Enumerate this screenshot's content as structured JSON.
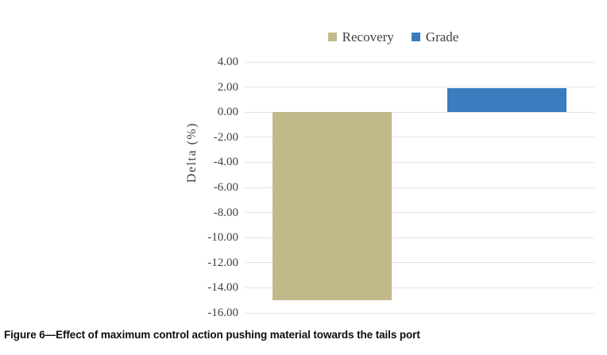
{
  "chart_data": {
    "type": "bar",
    "title": "",
    "xlabel": "",
    "ylabel": "Delta (%)",
    "ylim": [
      -16,
      4
    ],
    "ytick_step": 2,
    "ytick_labels": [
      "4.00",
      "2.00",
      "0.00",
      "-2.00",
      "-4.00",
      "-6.00",
      "-8.00",
      "-10.00",
      "-12.00",
      "-14.00",
      "-16.00"
    ],
    "ytick_values": [
      4,
      2,
      0,
      -2,
      -4,
      -6,
      -8,
      -10,
      -12,
      -14,
      -16
    ],
    "grid": true,
    "legend_position": "top-center",
    "series": [
      {
        "name": "Recovery",
        "value": -15.0,
        "color": "#C1B98A"
      },
      {
        "name": "Grade",
        "value": 1.9,
        "color": "#3B7CBF"
      }
    ]
  },
  "caption": "Figure 6—Effect of maximum control action pushing material towards the tails port",
  "colors": {
    "recovery_bar": "#C1B98A",
    "grade_bar": "#3B7CBF",
    "gridline": "#E4E4E4",
    "axis_text": "#404040",
    "caption_text": "#0D0D0D",
    "background": "#FFFFFF"
  }
}
